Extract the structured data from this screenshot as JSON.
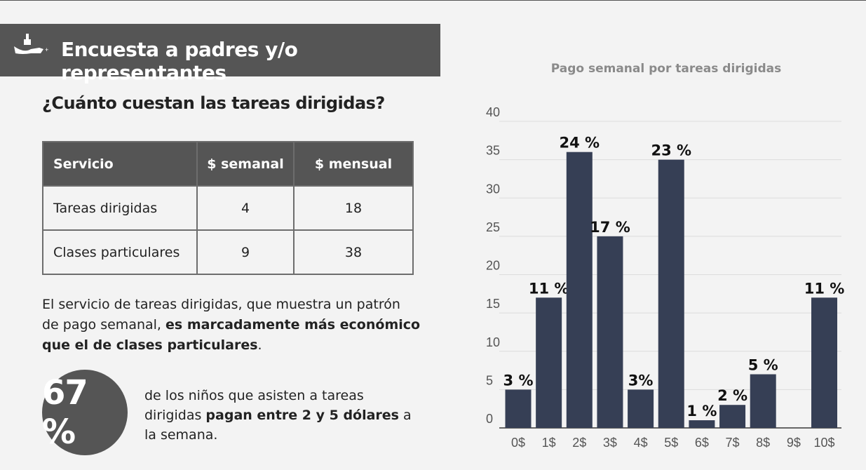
{
  "header": {
    "title": "Encuesta a padres y/o representantes",
    "logo_icon": "chess-knight-logo-icon"
  },
  "question": "¿Cuánto cuestan las tareas dirigidas?",
  "table": {
    "headers": [
      "Servicio",
      "$ semanal",
      "$ mensual"
    ],
    "rows": [
      [
        "Tareas dirigidas",
        "4",
        "18"
      ],
      [
        "Clases particulares",
        "9",
        "38"
      ]
    ]
  },
  "paragraph": {
    "normal": "El servicio de tareas dirigidas, que muestra un patrón de pago semanal, ",
    "bold": "es marcadamente más económico que el de clases particulares",
    "end": "."
  },
  "stat": {
    "value": "67 %",
    "text1": "de los niños que asisten a tareas dirigidas ",
    "bold": "pagan entre 2 y 5 dólares",
    "text2": " a la semana."
  },
  "chart_data": {
    "type": "bar",
    "title": "Pago semanal por tareas dirigidas",
    "categories": [
      "0$",
      "1$",
      "2$",
      "3$",
      "4$",
      "5$",
      "6$",
      "7$",
      "8$",
      "9$",
      "10$"
    ],
    "values": [
      5,
      17,
      36,
      25,
      5,
      35,
      1,
      3,
      7,
      0,
      17
    ],
    "data_labels": [
      "3 %",
      "11 %",
      "24 %",
      "17 %",
      "3%",
      "23 %",
      "1 %",
      "2 %",
      "5 %",
      "",
      "11 %"
    ],
    "yticks": [
      "0",
      "5",
      "10",
      "15",
      "20",
      "25",
      "30",
      "35",
      "40"
    ],
    "ylim": [
      0,
      40
    ],
    "grid": true,
    "bar_color": "#363f55"
  }
}
